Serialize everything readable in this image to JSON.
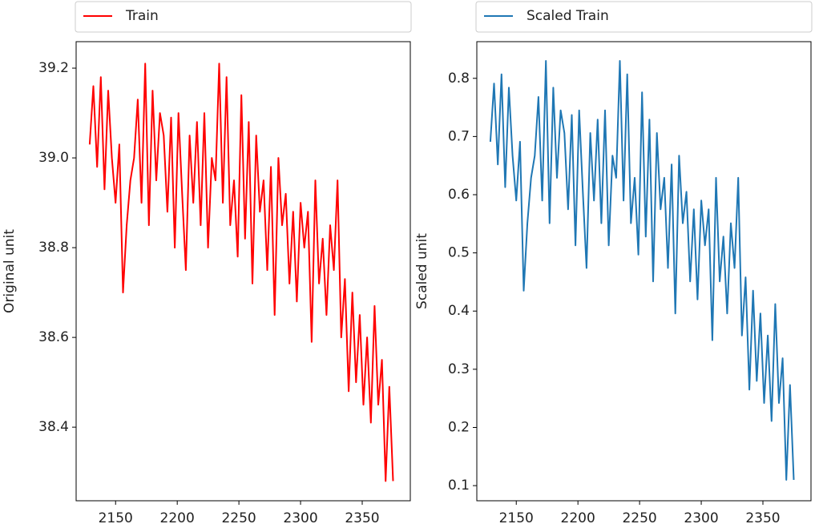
{
  "chart_data": [
    {
      "type": "line",
      "ylabel": "Original unit",
      "x": [
        2129,
        2132,
        2135,
        2138,
        2141,
        2144,
        2147,
        2150,
        2153,
        2156,
        2159,
        2162,
        2165,
        2168,
        2171,
        2174,
        2177,
        2180,
        2183,
        2186,
        2189,
        2192,
        2195,
        2198,
        2201,
        2204,
        2207,
        2210,
        2213,
        2216,
        2219,
        2222,
        2225,
        2228,
        2231,
        2234,
        2237,
        2240,
        2243,
        2246,
        2249,
        2252,
        2255,
        2258,
        2261,
        2264,
        2267,
        2270,
        2273,
        2276,
        2279,
        2282,
        2285,
        2288,
        2291,
        2294,
        2297,
        2300,
        2303,
        2306,
        2309,
        2312,
        2315,
        2318,
        2321,
        2324,
        2327,
        2330,
        2333,
        2336,
        2339,
        2342,
        2345,
        2348,
        2351,
        2354,
        2357,
        2360,
        2363,
        2366,
        2369,
        2372,
        2375
      ],
      "series": [
        {
          "name": "Train",
          "color": "#ff0000",
          "values": [
            39.03,
            39.16,
            38.98,
            39.18,
            38.93,
            39.15,
            39.0,
            38.9,
            39.03,
            38.7,
            38.85,
            38.95,
            39.0,
            39.13,
            38.9,
            39.21,
            38.85,
            39.15,
            38.95,
            39.1,
            39.05,
            38.88,
            39.09,
            38.8,
            39.1,
            38.92,
            38.75,
            39.05,
            38.9,
            39.08,
            38.85,
            39.1,
            38.8,
            39.0,
            38.95,
            39.21,
            38.9,
            39.18,
            38.85,
            38.95,
            38.78,
            39.14,
            38.82,
            39.08,
            38.72,
            39.05,
            38.88,
            38.95,
            38.75,
            38.98,
            38.65,
            39.0,
            38.85,
            38.92,
            38.72,
            38.88,
            38.68,
            38.9,
            38.8,
            38.88,
            38.59,
            38.95,
            38.72,
            38.82,
            38.65,
            38.85,
            38.75,
            38.95,
            38.6,
            38.73,
            38.48,
            38.7,
            38.5,
            38.65,
            38.45,
            38.6,
            38.41,
            38.67,
            38.45,
            38.55,
            38.28,
            38.49,
            38.28
          ]
        }
      ],
      "xlim": [
        2118,
        2389
      ],
      "xticks": [
        2150,
        2200,
        2250,
        2300,
        2350
      ],
      "ylim": [
        38.236,
        39.259
      ],
      "yticks": [
        38.4,
        38.6,
        38.8,
        {
          "value": 39,
          "label": "39.0"
        },
        39.2
      ]
    },
    {
      "type": "line",
      "ylabel": "Scaled unit",
      "x": [
        2129,
        2132,
        2135,
        2138,
        2141,
        2144,
        2147,
        2150,
        2153,
        2156,
        2159,
        2162,
        2165,
        2168,
        2171,
        2174,
        2177,
        2180,
        2183,
        2186,
        2189,
        2192,
        2195,
        2198,
        2201,
        2204,
        2207,
        2210,
        2213,
        2216,
        2219,
        2222,
        2225,
        2228,
        2231,
        2234,
        2237,
        2240,
        2243,
        2246,
        2249,
        2252,
        2255,
        2258,
        2261,
        2264,
        2267,
        2270,
        2273,
        2276,
        2279,
        2282,
        2285,
        2288,
        2291,
        2294,
        2297,
        2300,
        2303,
        2306,
        2309,
        2312,
        2315,
        2318,
        2321,
        2324,
        2327,
        2330,
        2333,
        2336,
        2339,
        2342,
        2345,
        2348,
        2351,
        2354,
        2357,
        2360,
        2363,
        2366,
        2369,
        2372,
        2375
      ],
      "series": [
        {
          "name": "Scaled Train",
          "color": "#1f77b4",
          "values": [
            0.691,
            0.791,
            0.652,
            0.807,
            0.613,
            0.784,
            0.667,
            0.59,
            0.691,
            0.435,
            0.551,
            0.629,
            0.667,
            0.768,
            0.59,
            0.83,
            0.551,
            0.784,
            0.629,
            0.745,
            0.706,
            0.575,
            0.737,
            0.513,
            0.745,
            0.605,
            0.474,
            0.706,
            0.59,
            0.729,
            0.551,
            0.745,
            0.513,
            0.667,
            0.629,
            0.83,
            0.59,
            0.807,
            0.551,
            0.629,
            0.497,
            0.776,
            0.528,
            0.729,
            0.451,
            0.706,
            0.575,
            0.629,
            0.474,
            0.652,
            0.396,
            0.667,
            0.551,
            0.605,
            0.451,
            0.575,
            0.42,
            0.59,
            0.513,
            0.575,
            0.35,
            0.629,
            0.451,
            0.528,
            0.396,
            0.551,
            0.474,
            0.629,
            0.358,
            0.458,
            0.265,
            0.435,
            0.28,
            0.396,
            0.242,
            0.358,
            0.211,
            0.412,
            0.242,
            0.319,
            0.11,
            0.273,
            0.11
          ]
        }
      ],
      "xlim": [
        2118,
        2389
      ],
      "xticks": [
        2150,
        2200,
        2250,
        2300,
        2350
      ],
      "ylim": [
        0.074,
        0.863
      ],
      "yticks": [
        0.1,
        0.2,
        0.3,
        0.4,
        0.5,
        0.6,
        0.7,
        0.8
      ]
    }
  ]
}
